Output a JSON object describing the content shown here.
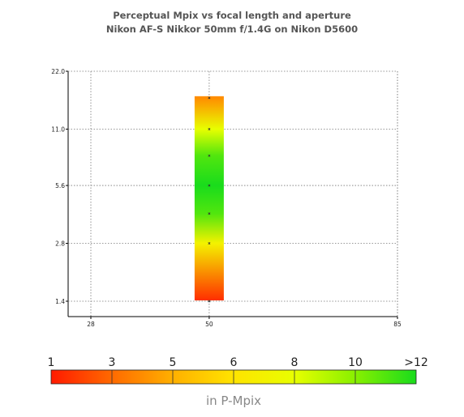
{
  "chart_data": {
    "type": "heatmap",
    "title": "Perceptual Mpix vs focal length and aperture",
    "subtitle": "Nikon AF-S Nikkor 50mm f/1.4G on Nikon D5600",
    "x_ticks": [
      "28",
      "50",
      "85"
    ],
    "x_tick_values": [
      28,
      50,
      85
    ],
    "y_ticks": [
      "1.4",
      "2.8",
      "5.6",
      "11.0",
      "22.0"
    ],
    "y_tick_values": [
      1.4,
      2.8,
      5.6,
      11.0,
      22.0
    ],
    "y_scale": "log2",
    "xlim": [
      28,
      85
    ],
    "ylim": [
      1.4,
      22.0
    ],
    "grid": true,
    "points": [
      {
        "focal": 50,
        "aperture": 1.4,
        "mpix": 1.5
      },
      {
        "focal": 50,
        "aperture": 2.8,
        "mpix": 7.0
      },
      {
        "focal": 50,
        "aperture": 4.0,
        "mpix": 11.0
      },
      {
        "focal": 50,
        "aperture": 5.6,
        "mpix": 12.0
      },
      {
        "focal": 50,
        "aperture": 8.0,
        "mpix": 11.0
      },
      {
        "focal": 50,
        "aperture": 11.0,
        "mpix": 8.0
      },
      {
        "focal": 50,
        "aperture": 16.0,
        "mpix": 4.0
      }
    ],
    "colorbar": {
      "labels": [
        "1",
        "3",
        "5",
        "6",
        "8",
        "10",
        ">12"
      ],
      "unit": "in P-Mpix",
      "colors": [
        "#ff1a00",
        "#ff6a00",
        "#ffb000",
        "#ffe400",
        "#e8ff00",
        "#88f000",
        "#19dc1c"
      ]
    }
  }
}
